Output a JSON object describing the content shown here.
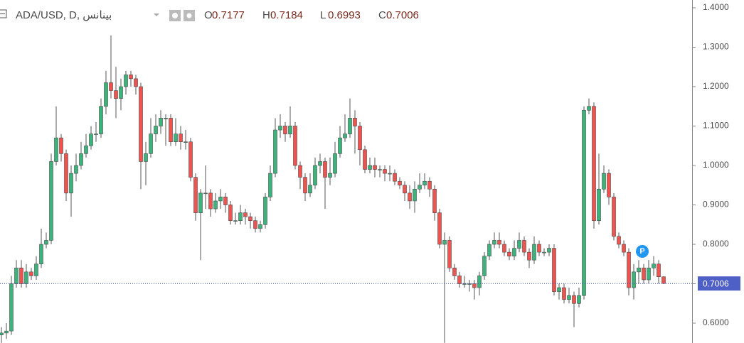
{
  "chart_data": {
    "type": "candlestick",
    "title": "ADA/USD, D, بينانس",
    "ohlc_letters": [
      "O",
      "H",
      "L",
      "C"
    ],
    "up_color": "#3cb37a",
    "down_color": "#ef5350",
    "ylim": [
      0.5496,
      1.4198
    ],
    "yticks": [
      {
        "value": 0.6,
        "label": "0.6000"
      },
      {
        "value": 0.7,
        "label": "0.7000"
      },
      {
        "value": 0.8,
        "label": "0.8000"
      },
      {
        "value": 0.9,
        "label": "0.9000"
      },
      {
        "value": 1.0,
        "label": "1.0000"
      },
      {
        "value": 1.1,
        "label": "1.1000"
      },
      {
        "value": 1.2,
        "label": "1.2000"
      },
      {
        "value": 1.3,
        "label": "1.3000"
      },
      {
        "value": 1.4,
        "label": "1.4000"
      }
    ],
    "open": [
      0.57,
      0.575,
      0.58,
      0.7,
      0.74,
      0.7,
      0.73,
      0.72,
      0.75,
      0.8,
      0.81,
      1.01,
      1.07,
      1.03,
      0.93,
      0.98,
      1.0,
      1.03,
      1.05,
      1.08,
      1.08,
      1.15,
      1.21,
      1.19,
      1.17,
      1.2,
      1.23,
      1.22,
      1.2,
      1.01,
      1.03,
      1.08,
      1.1,
      1.12,
      1.12,
      1.06,
      1.08,
      1.06,
      1.06,
      0.97,
      0.88,
      0.93,
      0.93,
      0.89,
      0.91,
      0.92,
      0.9,
      0.86,
      0.86,
      0.88,
      0.87,
      0.86,
      0.84,
      0.85,
      0.92,
      0.98,
      1.09,
      1.1,
      1.08,
      1.1,
      1.0,
      0.97,
      0.93,
      0.95,
      1.0,
      1.01,
      0.97,
      0.98,
      1.03,
      1.07,
      1.08,
      1.12,
      1.1,
      1.04,
      0.99,
      1.0,
      0.99,
      0.99,
      0.98,
      0.98,
      0.96,
      0.95,
      0.93,
      0.91,
      0.94,
      0.95,
      0.96,
      0.94,
      0.88,
      0.8,
      0.81,
      0.74,
      0.72,
      0.7,
      0.7,
      0.7,
      0.69,
      0.72,
      0.77,
      0.8,
      0.81,
      0.8,
      0.78,
      0.77,
      0.79,
      0.81,
      0.78,
      0.76,
      0.8,
      0.78,
      0.78,
      0.79,
      0.68,
      0.69,
      0.66,
      0.67,
      0.65,
      0.67,
      1.14,
      1.15,
      0.86,
      0.94,
      0.98,
      0.92,
      0.82,
      0.8,
      0.78,
      0.69,
      0.73,
      0.74,
      0.71,
      0.74,
      0.75,
      0.7177
    ],
    "high": [
      0.59,
      0.6,
      0.72,
      0.76,
      0.76,
      0.75,
      0.74,
      0.77,
      0.84,
      0.83,
      1.03,
      1.15,
      1.08,
      1.04,
      1.0,
      1.03,
      1.06,
      1.08,
      1.1,
      1.11,
      1.17,
      1.24,
      1.33,
      1.25,
      1.22,
      1.24,
      1.24,
      1.23,
      1.21,
      1.06,
      1.12,
      1.13,
      1.14,
      1.13,
      1.13,
      1.12,
      1.1,
      1.09,
      1.07,
      0.98,
      0.94,
      1.0,
      0.94,
      0.93,
      0.94,
      0.93,
      0.91,
      0.88,
      0.9,
      0.89,
      0.88,
      0.87,
      0.86,
      0.93,
      1.0,
      1.12,
      1.13,
      1.11,
      1.15,
      1.11,
      1.01,
      0.98,
      0.98,
      1.02,
      1.03,
      1.02,
      1.02,
      1.06,
      1.1,
      1.13,
      1.17,
      1.14,
      1.11,
      1.05,
      1.02,
      1.02,
      1.0,
      1.0,
      1.0,
      0.99,
      0.97,
      0.96,
      0.95,
      0.96,
      0.98,
      0.98,
      0.97,
      0.95,
      0.89,
      0.83,
      0.82,
      0.75,
      0.73,
      0.72,
      0.71,
      0.71,
      0.73,
      0.78,
      0.81,
      0.83,
      0.83,
      0.81,
      0.79,
      0.81,
      0.83,
      0.82,
      0.79,
      0.82,
      0.81,
      0.79,
      0.8,
      0.8,
      0.7,
      0.7,
      0.69,
      0.68,
      0.69,
      1.15,
      1.17,
      1.16,
      1.03,
      1.0,
      0.99,
      0.93,
      0.83,
      0.81,
      0.79,
      0.75,
      0.76,
      0.75,
      0.76,
      0.77,
      0.76,
      0.7184
    ],
    "low": [
      0.55,
      0.56,
      0.57,
      0.69,
      0.69,
      0.69,
      0.71,
      0.71,
      0.74,
      0.79,
      0.8,
      1.0,
      1.01,
      0.91,
      0.87,
      0.96,
      0.99,
      1.02,
      1.04,
      1.06,
      1.07,
      1.13,
      1.17,
      1.12,
      1.14,
      1.18,
      1.2,
      1.18,
      0.94,
      0.95,
      1.02,
      1.06,
      1.08,
      1.05,
      1.05,
      1.05,
      1.04,
      1.04,
      0.96,
      0.86,
      0.76,
      0.89,
      0.87,
      0.88,
      0.89,
      0.88,
      0.85,
      0.85,
      0.85,
      0.85,
      0.84,
      0.83,
      0.83,
      0.84,
      0.91,
      0.97,
      1.07,
      1.06,
      1.07,
      0.99,
      0.94,
      0.91,
      0.92,
      0.94,
      0.98,
      0.89,
      0.95,
      0.97,
      1.02,
      1.06,
      1.07,
      1.03,
      1.0,
      0.98,
      0.98,
      0.97,
      0.97,
      0.96,
      0.96,
      0.95,
      0.94,
      0.91,
      0.89,
      0.88,
      0.93,
      0.94,
      0.92,
      0.86,
      0.79,
      0.55,
      0.73,
      0.71,
      0.69,
      0.69,
      0.68,
      0.66,
      0.67,
      0.71,
      0.76,
      0.79,
      0.79,
      0.77,
      0.76,
      0.76,
      0.78,
      0.77,
      0.74,
      0.75,
      0.77,
      0.77,
      0.77,
      0.67,
      0.66,
      0.65,
      0.65,
      0.59,
      0.64,
      0.66,
      1.13,
      0.84,
      0.85,
      0.93,
      0.9,
      0.81,
      0.79,
      0.77,
      0.67,
      0.66,
      0.7,
      0.7,
      0.7,
      0.72,
      0.7,
      0.6993
    ],
    "close": [
      0.575,
      0.58,
      0.7,
      0.74,
      0.7,
      0.73,
      0.72,
      0.75,
      0.8,
      0.81,
      1.01,
      1.07,
      1.03,
      0.93,
      0.98,
      1.0,
      1.03,
      1.05,
      1.08,
      1.08,
      1.15,
      1.21,
      1.19,
      1.17,
      1.2,
      1.23,
      1.22,
      1.2,
      1.01,
      1.03,
      1.08,
      1.1,
      1.12,
      1.12,
      1.06,
      1.08,
      1.06,
      1.06,
      0.97,
      0.88,
      0.93,
      0.93,
      0.89,
      0.91,
      0.92,
      0.9,
      0.86,
      0.86,
      0.88,
      0.87,
      0.86,
      0.84,
      0.85,
      0.92,
      0.98,
      1.09,
      1.1,
      1.08,
      1.1,
      1.0,
      0.97,
      0.93,
      0.95,
      1.0,
      1.01,
      0.97,
      0.98,
      1.03,
      1.07,
      1.08,
      1.12,
      1.1,
      1.04,
      0.99,
      1.0,
      0.99,
      0.99,
      0.98,
      0.98,
      0.96,
      0.95,
      0.93,
      0.91,
      0.94,
      0.95,
      0.96,
      0.94,
      0.88,
      0.8,
      0.81,
      0.74,
      0.72,
      0.7,
      0.7,
      0.7,
      0.69,
      0.72,
      0.77,
      0.8,
      0.81,
      0.8,
      0.78,
      0.77,
      0.79,
      0.81,
      0.78,
      0.76,
      0.8,
      0.78,
      0.78,
      0.79,
      0.68,
      0.69,
      0.66,
      0.67,
      0.65,
      0.67,
      1.14,
      1.15,
      0.86,
      0.94,
      0.98,
      0.92,
      0.82,
      0.8,
      0.78,
      0.69,
      0.73,
      0.74,
      0.71,
      0.74,
      0.75,
      0.7177,
      0.7006
    ]
  }
}
